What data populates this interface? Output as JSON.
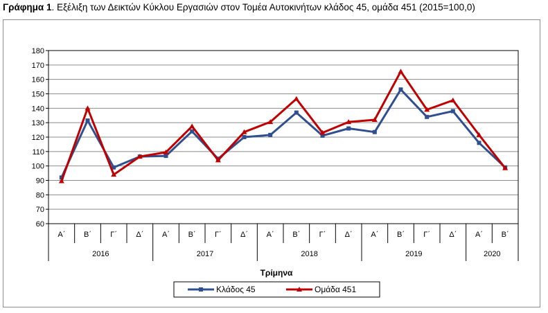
{
  "caption": {
    "label": "Γράφημα 1",
    "text": ". Εξέλιξη των Δεικτών Κύκλου Εργασιών στον Τομέα Αυτοκινήτων κλάδος 45, ομάδα 451 (2015=100,0)"
  },
  "chart_data": {
    "type": "line",
    "xlabel": "Τρίμηνα",
    "ylabel": "",
    "ylim": [
      60,
      180
    ],
    "yticks": [
      60,
      70,
      80,
      90,
      100,
      110,
      120,
      130,
      140,
      150,
      160,
      170,
      180
    ],
    "grid": true,
    "legend_position": "bottom",
    "categories": [
      "Α΄",
      "Β΄",
      "Γ΄",
      "Δ΄",
      "Α΄",
      "Β΄",
      "Γ΄",
      "Δ΄",
      "Α΄",
      "Β΄",
      "Γ΄",
      "Δ΄",
      "Α΄",
      "Β΄",
      "Γ΄",
      "Δ΄",
      "Α΄",
      "Β΄"
    ],
    "years": [
      {
        "label": "2016",
        "count": 4
      },
      {
        "label": "2017",
        "count": 4
      },
      {
        "label": "2018",
        "count": 4
      },
      {
        "label": "2019",
        "count": 4
      },
      {
        "label": "2020",
        "count": 2
      }
    ],
    "series": [
      {
        "name": "Κλάδος 45",
        "color": "#2f4f8f",
        "marker": "square",
        "values": [
          92,
          131.5,
          99,
          106.5,
          107,
          124,
          105,
          120,
          121.5,
          137,
          121,
          126,
          123.5,
          153,
          134,
          138,
          116,
          99
        ]
      },
      {
        "name": "Ομάδα 451",
        "color": "#c00000",
        "marker": "triangle",
        "values": [
          89.5,
          140,
          94,
          106.5,
          109.5,
          127.5,
          104,
          123.5,
          130.5,
          146.5,
          123,
          130.5,
          132,
          165.5,
          139,
          145.5,
          121.5,
          98.5
        ]
      }
    ]
  }
}
